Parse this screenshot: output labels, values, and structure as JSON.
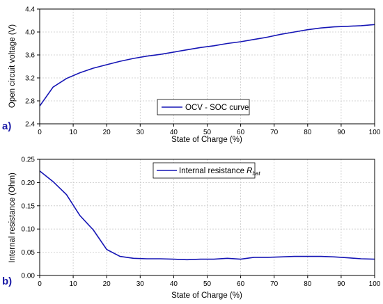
{
  "chart_data": [
    {
      "type": "line",
      "panel_label": "a)",
      "xlabel": "State of Charge (%)",
      "ylabel": "Open circuit voltage (V)",
      "xlim": [
        0,
        100
      ],
      "ylim": [
        2.4,
        4.4
      ],
      "xticks": [
        0,
        10,
        20,
        30,
        40,
        50,
        60,
        70,
        80,
        90,
        100
      ],
      "yticks": [
        "2.4",
        "2.8",
        "3.2",
        "3.6",
        "4.0",
        "4.4"
      ],
      "grid": true,
      "legend_position": "lower-center",
      "series": [
        {
          "name": "OCV - SOC curve",
          "color": "#1515b5",
          "x": [
            0,
            4,
            8,
            12,
            16,
            20,
            24,
            28,
            32,
            36,
            40,
            44,
            48,
            52,
            56,
            60,
            64,
            68,
            72,
            76,
            80,
            84,
            88,
            92,
            96,
            100
          ],
          "y": [
            2.71,
            3.04,
            3.19,
            3.29,
            3.37,
            3.43,
            3.49,
            3.54,
            3.58,
            3.61,
            3.65,
            3.69,
            3.73,
            3.76,
            3.8,
            3.83,
            3.87,
            3.91,
            3.96,
            4.0,
            4.04,
            4.07,
            4.09,
            4.1,
            4.11,
            4.13
          ]
        }
      ]
    },
    {
      "type": "line",
      "panel_label": "b)",
      "xlabel": "State of Charge (%)",
      "ylabel": "Internal resistance (Ohm)",
      "xlim": [
        0,
        100
      ],
      "ylim": [
        0,
        0.25
      ],
      "xticks": [
        0,
        10,
        20,
        30,
        40,
        50,
        60,
        70,
        80,
        90,
        100
      ],
      "yticks": [
        "0.00",
        "0.05",
        "0.10",
        "0.15",
        "0.20",
        "0.25"
      ],
      "grid": true,
      "legend_position": "top-center",
      "series": [
        {
          "name": "Internal resistance ",
          "name_math_symbol": "R",
          "name_math_subscript": "bat",
          "color": "#1515b5",
          "x": [
            0,
            4,
            8,
            12,
            16,
            20,
            24,
            28,
            32,
            36,
            40,
            44,
            48,
            52,
            56,
            60,
            64,
            68,
            72,
            76,
            80,
            84,
            88,
            92,
            96,
            100
          ],
          "y": [
            0.225,
            0.202,
            0.174,
            0.129,
            0.098,
            0.056,
            0.041,
            0.037,
            0.036,
            0.036,
            0.035,
            0.034,
            0.035,
            0.035,
            0.037,
            0.035,
            0.039,
            0.039,
            0.04,
            0.041,
            0.041,
            0.041,
            0.04,
            0.038,
            0.036,
            0.035
          ]
        }
      ]
    }
  ]
}
